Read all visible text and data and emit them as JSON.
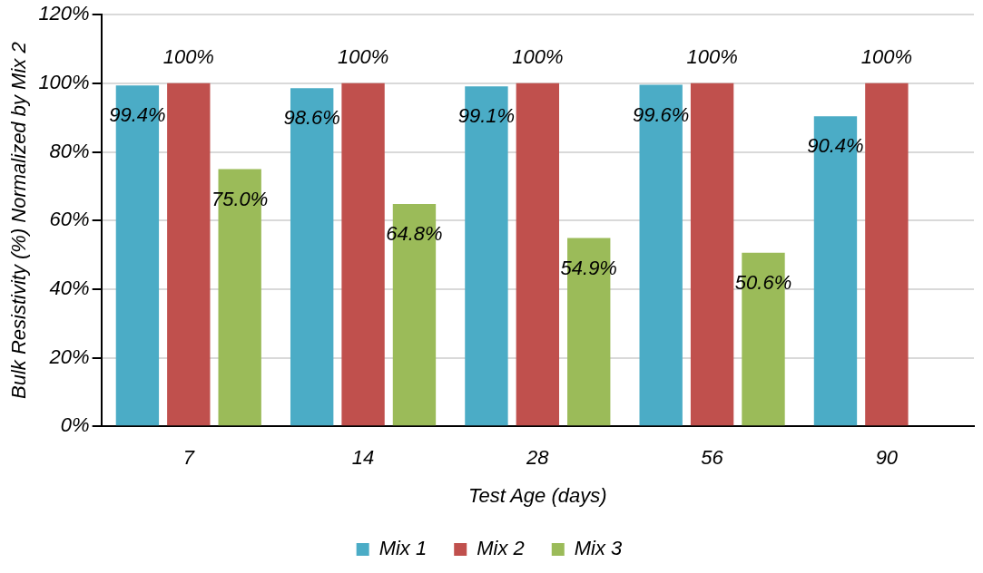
{
  "chart_data": {
    "type": "bar",
    "xlabel": "Test Age (days)",
    "ylabel": "Bulk Resistivity (%) Normalized by Mix 2",
    "categories": [
      "7",
      "14",
      "28",
      "56",
      "90"
    ],
    "series": [
      {
        "name": "Mix 1",
        "color": "#4bacc6",
        "values": [
          99.4,
          98.6,
          99.1,
          99.6,
          90.4
        ],
        "value_labels": [
          "99.4%",
          "98.6%",
          "99.1%",
          "99.6%",
          "90.4%"
        ]
      },
      {
        "name": "Mix 2",
        "color": "#c0504d",
        "values": [
          100,
          100,
          100,
          100,
          100
        ],
        "value_labels": [
          "100%",
          "100%",
          "100%",
          "100%",
          "100%"
        ]
      },
      {
        "name": "Mix 3",
        "color": "#9bbb59",
        "values": [
          75.0,
          64.8,
          54.9,
          50.6,
          null
        ],
        "value_labels": [
          "75.0%",
          "64.8%",
          "54.9%",
          "50.6%",
          null
        ]
      }
    ],
    "ylim": [
      0,
      120
    ],
    "yticks": [
      {
        "value": 0,
        "label": "0%"
      },
      {
        "value": 20,
        "label": "20%"
      },
      {
        "value": 40,
        "label": "40%"
      },
      {
        "value": 60,
        "label": "60%"
      },
      {
        "value": 80,
        "label": "80%"
      },
      {
        "value": 100,
        "label": "100%"
      },
      {
        "value": 120,
        "label": "120%"
      }
    ],
    "grid": "y",
    "legend": "bottom"
  }
}
